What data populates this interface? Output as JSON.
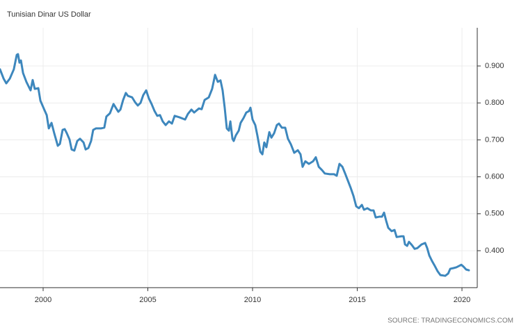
{
  "chart_data": {
    "type": "line",
    "title": "Tunisian Dinar US Dollar",
    "source": "SOURCE: TRADINGECONOMICS.COM",
    "x": [
      1997.94,
      1998.11,
      1998.24,
      1998.41,
      1998.6,
      1998.74,
      1998.8,
      1998.87,
      1998.94,
      1999.04,
      1999.2,
      1999.4,
      1999.5,
      1999.6,
      1999.77,
      1999.87,
      2000.03,
      2000.17,
      2000.27,
      2000.4,
      2000.53,
      2000.7,
      2000.8,
      2000.93,
      2001.03,
      2001.13,
      2001.26,
      2001.36,
      2001.49,
      2001.63,
      2001.76,
      2001.93,
      2002.03,
      2002.16,
      2002.29,
      2002.39,
      2002.52,
      2002.76,
      2002.92,
      2003.02,
      2003.19,
      2003.36,
      2003.49,
      2003.59,
      2003.69,
      2003.82,
      2003.95,
      2004.05,
      2004.25,
      2004.39,
      2004.52,
      2004.65,
      2004.78,
      2004.92,
      2005.05,
      2005.18,
      2005.32,
      2005.45,
      2005.58,
      2005.71,
      2005.85,
      2006.01,
      2006.15,
      2006.28,
      2006.51,
      2006.78,
      2006.91,
      2007.08,
      2007.21,
      2007.44,
      2007.57,
      2007.71,
      2007.91,
      2008.07,
      2008.21,
      2008.34,
      2008.47,
      2008.57,
      2008.67,
      2008.77,
      2008.87,
      2008.94,
      2009.04,
      2009.1,
      2009.2,
      2009.34,
      2009.43,
      2009.57,
      2009.7,
      2009.83,
      2009.9,
      2010.0,
      2010.13,
      2010.23,
      2010.37,
      2010.47,
      2010.56,
      2010.66,
      2010.8,
      2010.9,
      2011.03,
      2011.16,
      2011.26,
      2011.4,
      2011.56,
      2011.69,
      2011.83,
      2011.99,
      2012.16,
      2012.29,
      2012.39,
      2012.52,
      2012.69,
      2012.89,
      2013.02,
      2013.16,
      2013.32,
      2013.45,
      2013.69,
      2013.89,
      2014.02,
      2014.15,
      2014.29,
      2014.42,
      2014.55,
      2014.68,
      2014.82,
      2014.95,
      2015.08,
      2015.22,
      2015.32,
      2015.48,
      2015.65,
      2015.78,
      2015.88,
      2016.05,
      2016.18,
      2016.28,
      2016.38,
      2016.48,
      2016.64,
      2016.78,
      2016.88,
      2017.11,
      2017.21,
      2017.28,
      2017.38,
      2017.47,
      2017.61,
      2017.74,
      2017.87,
      2018.07,
      2018.24,
      2018.34,
      2018.44,
      2018.57,
      2018.7,
      2018.84,
      2018.97,
      2019.2,
      2019.34,
      2019.44,
      2019.6,
      2019.73,
      2019.87,
      2019.97,
      2020.07,
      2020.2,
      2020.33
    ],
    "series": [
      {
        "color": "#3d87bd",
        "values": [
          0.891,
          0.866,
          0.853,
          0.866,
          0.891,
          0.93,
          0.932,
          0.909,
          0.915,
          0.881,
          0.857,
          0.834,
          0.862,
          0.838,
          0.84,
          0.806,
          0.785,
          0.767,
          0.731,
          0.746,
          0.718,
          0.684,
          0.689,
          0.727,
          0.729,
          0.718,
          0.701,
          0.674,
          0.671,
          0.697,
          0.703,
          0.693,
          0.674,
          0.678,
          0.697,
          0.727,
          0.731,
          0.731,
          0.733,
          0.763,
          0.772,
          0.797,
          0.785,
          0.776,
          0.782,
          0.808,
          0.827,
          0.819,
          0.815,
          0.802,
          0.793,
          0.8,
          0.821,
          0.834,
          0.812,
          0.797,
          0.778,
          0.765,
          0.767,
          0.75,
          0.74,
          0.75,
          0.744,
          0.765,
          0.761,
          0.755,
          0.77,
          0.782,
          0.774,
          0.785,
          0.783,
          0.808,
          0.815,
          0.838,
          0.876,
          0.857,
          0.861,
          0.834,
          0.787,
          0.731,
          0.725,
          0.75,
          0.703,
          0.697,
          0.712,
          0.725,
          0.746,
          0.759,
          0.774,
          0.778,
          0.787,
          0.755,
          0.74,
          0.712,
          0.668,
          0.661,
          0.693,
          0.68,
          0.721,
          0.706,
          0.718,
          0.74,
          0.744,
          0.733,
          0.733,
          0.703,
          0.688,
          0.665,
          0.672,
          0.661,
          0.627,
          0.642,
          0.635,
          0.642,
          0.653,
          0.627,
          0.618,
          0.609,
          0.607,
          0.607,
          0.603,
          0.635,
          0.627,
          0.609,
          0.59,
          0.571,
          0.548,
          0.52,
          0.515,
          0.524,
          0.511,
          0.515,
          0.509,
          0.509,
          0.49,
          0.492,
          0.492,
          0.503,
          0.481,
          0.462,
          0.453,
          0.456,
          0.437,
          0.439,
          0.439,
          0.417,
          0.413,
          0.424,
          0.415,
          0.405,
          0.407,
          0.417,
          0.421,
          0.407,
          0.387,
          0.372,
          0.359,
          0.344,
          0.334,
          0.332,
          0.338,
          0.351,
          0.353,
          0.355,
          0.359,
          0.362,
          0.357,
          0.349,
          0.347
        ]
      }
    ],
    "xlim": [
      1997.94,
      2020.73
    ],
    "xticks": [
      2000,
      2005,
      2010,
      2015,
      2020
    ],
    "ylim": [
      0.3,
      1.0
    ],
    "yticks": [
      {
        "value": 0.4,
        "label": "0.400"
      },
      {
        "value": 0.5,
        "label": "0.500"
      },
      {
        "value": 0.6,
        "label": "0.600"
      },
      {
        "value": 0.7,
        "label": "0.700"
      },
      {
        "value": 0.8,
        "label": "0.800"
      },
      {
        "value": 0.9,
        "label": "0.900"
      }
    ],
    "grid": true
  }
}
